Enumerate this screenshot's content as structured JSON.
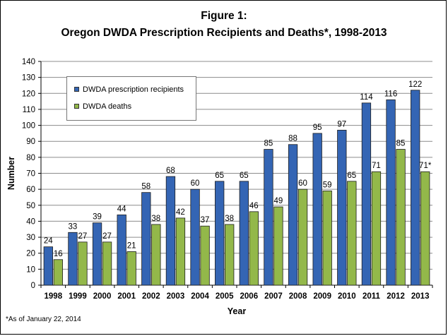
{
  "title_line1": "Figure 1:",
  "title_line2": "Oregon DWDA Prescription Recipients and Deaths*,  1998-2013",
  "footnote": "*As of January 22, 2014",
  "chart_data": {
    "type": "bar",
    "title": "Figure 1: Oregon DWDA Prescription Recipients and Deaths*, 1998-2013",
    "xlabel": "Year",
    "ylabel": "Number",
    "ylim": [
      0,
      140
    ],
    "yticks": [
      0,
      10,
      20,
      30,
      40,
      50,
      60,
      70,
      80,
      90,
      100,
      110,
      120,
      130,
      140
    ],
    "grid": true,
    "legend_position": "top-left",
    "categories": [
      "1998",
      "1999",
      "2000",
      "2001",
      "2002",
      "2003",
      "2004",
      "2005",
      "2006",
      "2007",
      "2008",
      "2009",
      "2010",
      "2011",
      "2012",
      "2013"
    ],
    "series": [
      {
        "name": "DWDA prescription recipients",
        "color": "#3465b4",
        "values": [
          24,
          33,
          39,
          44,
          58,
          68,
          60,
          65,
          65,
          85,
          88,
          95,
          97,
          114,
          116,
          122
        ],
        "labels": [
          "24",
          "33",
          "39",
          "44",
          "58",
          "68",
          "60",
          "65",
          "65",
          "85",
          "88",
          "95",
          "97",
          "114",
          "116",
          "122"
        ]
      },
      {
        "name": "DWDA deaths",
        "color": "#93b84a",
        "values": [
          16,
          27,
          27,
          21,
          38,
          42,
          37,
          38,
          46,
          49,
          60,
          59,
          65,
          71,
          85,
          71
        ],
        "labels": [
          "16",
          "27",
          "27",
          "21",
          "38",
          "42",
          "37",
          "38",
          "46",
          "49",
          "60",
          "59",
          "65",
          "71",
          "85",
          "71*"
        ]
      }
    ]
  }
}
